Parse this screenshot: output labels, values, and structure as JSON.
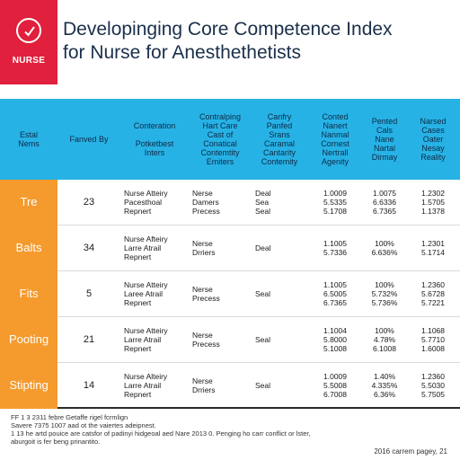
{
  "logo": {
    "text": "NURSE",
    "icon": "check-circle-icon"
  },
  "title": {
    "line1": "Developinging Core Competence Index",
    "line2": "for Nurse for Anesthethetists"
  },
  "table": {
    "headers": [
      "Estal\nNems",
      "Fanved By",
      "Conteration\n\nPotketbest\nInters",
      "Contralping\nHart Care\nCast of\nConatical\nContemtity\nEmiters",
      "Canfry\nPanfed\nSrans\nCaramal\nCantarity\nContemity",
      "Conted\nNanert\nNanmal\nCornest\nNertrall\nAgenity",
      "Pented\nCals\nNane\nNartal\nDirmay",
      "Narsed\nCases\nOater\nNesay\nReality"
    ],
    "rows": [
      {
        "label": "Tre",
        "by": "23",
        "c3": "Nurse Atteiry\nPacesthoal\nRepnert",
        "c4": "Nerse\nDamers\nPrecess",
        "c5": "Deal\nSea\nSeal",
        "c6": "1.0009\n5.5335\n5.1708",
        "c7": "1.0075\n6.6336\n6.7365",
        "c8": "1.2302\n1.5705\n1.1378"
      },
      {
        "label": "Balts",
        "by": "34",
        "c3": "Nurse Afteiry\nLarre Atrail\nRepnert",
        "c4": "Nerse\nDrriers",
        "c5": "Deal",
        "c6": "1.1005\n5.7336",
        "c7": "100%\n6.636%",
        "c8": "1.2301\n5.1714"
      },
      {
        "label": "Fits",
        "by": "5",
        "c3": "Nurse Atteiry\nLaree Atrail\nRepnert",
        "c4": "Nerse\nPrecess",
        "c5": "Seal",
        "c6": "1.1005\n6.5005\n6.7365",
        "c7": "100%\n5.732%\n5.736%",
        "c8": "1.2360\n5.6728\n5.7221"
      },
      {
        "label": "Pooting",
        "by": "21",
        "c3": "Nurse Atteiry\nLarre Atrail\nRepnert",
        "c4": "Nerse\nPrecess",
        "c5": "Seal",
        "c6": "1.1004\n5.8000\n5.1008",
        "c7": "100%\n4.78%\n6.1008",
        "c8": "1.1068\n5.7710\n1.6008"
      },
      {
        "label": "Stipting",
        "by": "14",
        "c3": "Nurse Alteiry\nLarre Atrail\nRepnert",
        "c4": "Nerse\nDrriers",
        "c5": "Seal",
        "c6": "1.0009\n5.5008\n6.7008",
        "c7": "1.40%\n4.335%\n6.36%",
        "c8": "1.2360\n5.5030\n5.7505"
      }
    ]
  },
  "footer": {
    "lines": [
      "FF 1 3 2311 febre Getaffe rigel fcrmlign",
      "Savere 7375 1007 aad ot the vaiertes adeipnest.",
      "1 13 he artd pouice are catsfor of padinyi hidgeoal aed Nare 2013 0. Penging ho carr conflict or lster,",
      "aburgoit is fer beng prinantito."
    ],
    "right": "2016 carrem pagey, 21"
  }
}
